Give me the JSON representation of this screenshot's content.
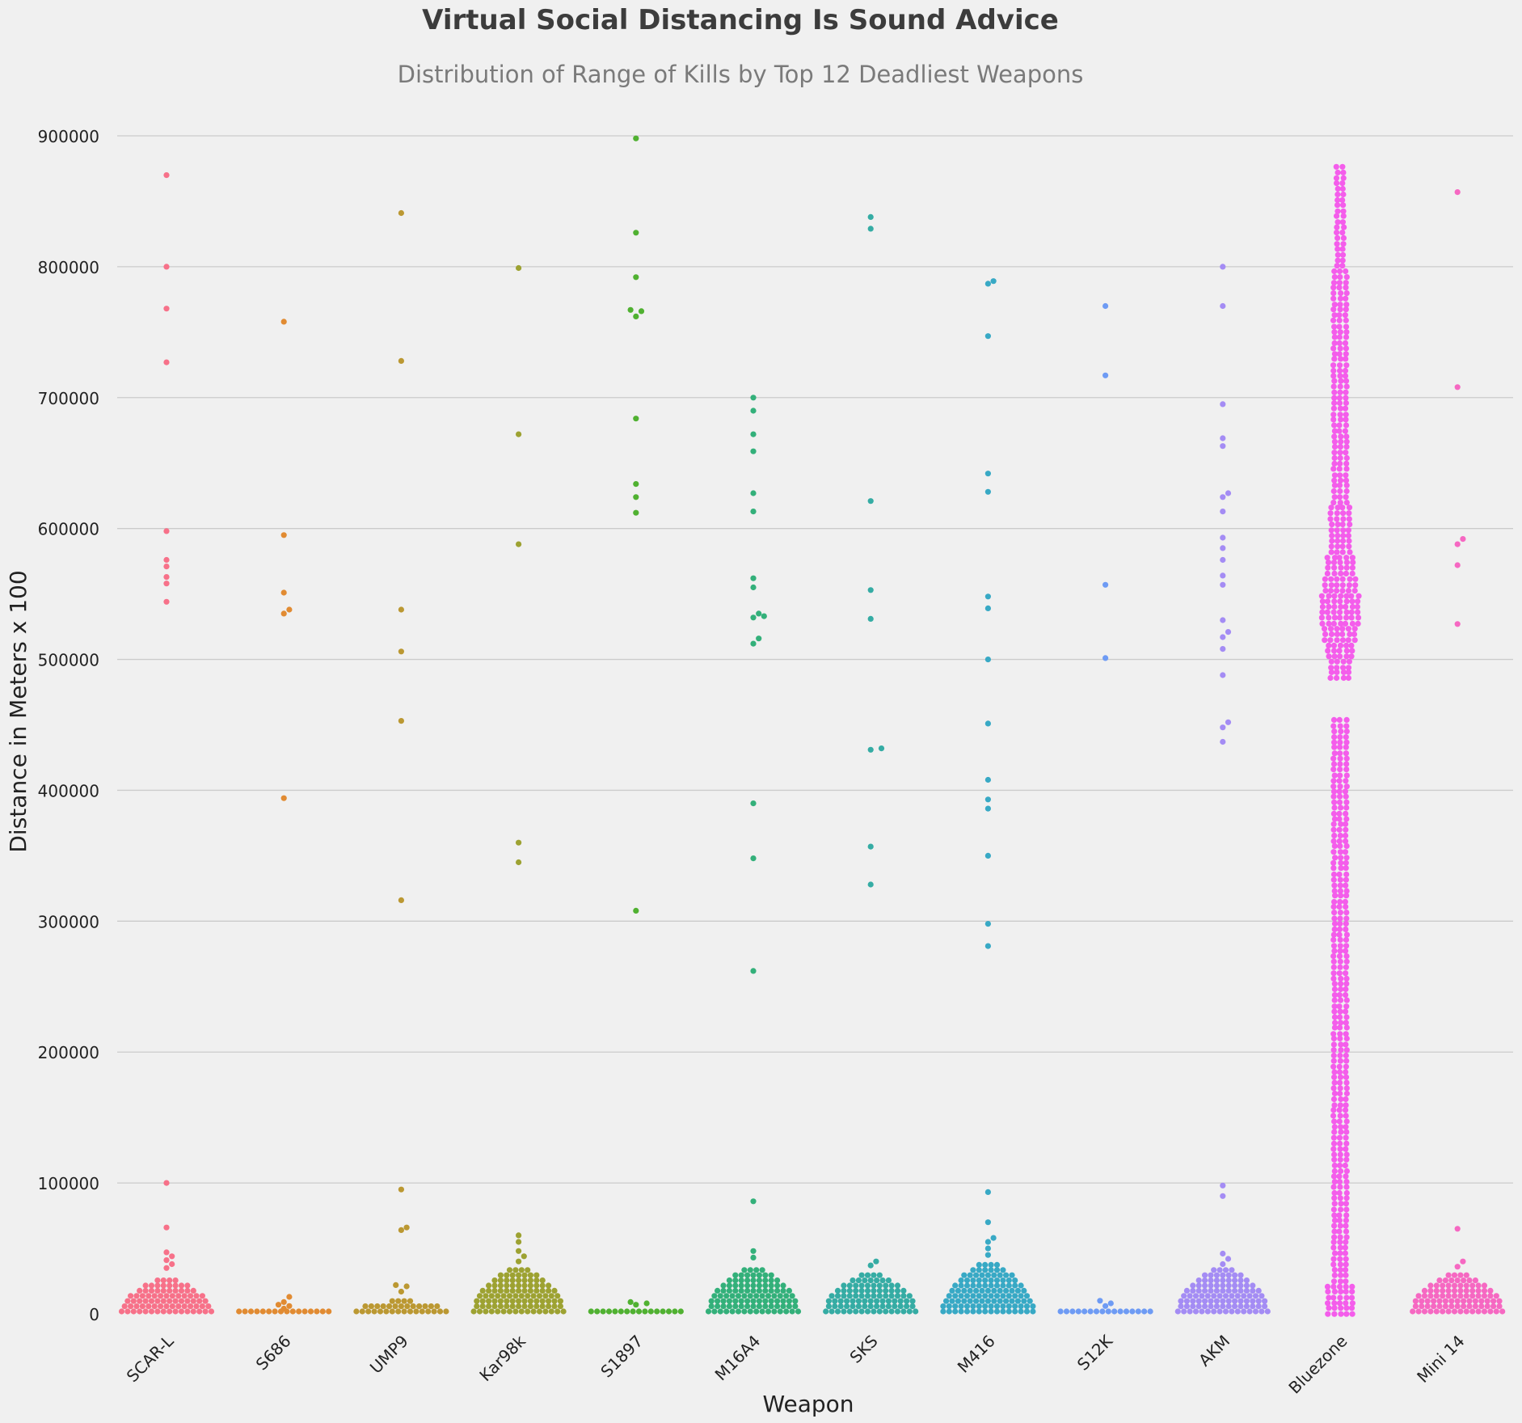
{
  "chart_data": {
    "type": "scatter",
    "subtype": "swarm",
    "title": "Virtual Social Distancing Is Sound Advice",
    "subtitle": "Distribution of Range of Kills by Top 12 Deadliest Weapons",
    "xlabel": "Weapon",
    "ylabel": "Distance in Meters x 100",
    "ylim": [
      0,
      915000
    ],
    "yticks": [
      0,
      100000,
      200000,
      300000,
      400000,
      500000,
      600000,
      700000,
      800000,
      900000
    ],
    "ytick_labels": [
      "0",
      "100000",
      "200000",
      "300000",
      "400000",
      "500000",
      "600000",
      "700000",
      "800000",
      "900000"
    ],
    "grid": "horizontal",
    "legend": "none",
    "categories": [
      "SCAR-L",
      "S686",
      "UMP9",
      "Kar98k",
      "S1897",
      "M16A4",
      "SKS",
      "M416",
      "S12K",
      "AKM",
      "Bluezone",
      "Mini 14"
    ],
    "colors": [
      "#f77189",
      "#e18b32",
      "#bb9832",
      "#9da232",
      "#50b131",
      "#33b07a",
      "#35aca4",
      "#38a9c5",
      "#6e9bf4",
      "#a48cf4",
      "#f45deb",
      "#f668c2"
    ],
    "series": [
      {
        "name": "SCAR-L",
        "outliers": [
          870000,
          800000,
          768000,
          727000,
          598000,
          576000,
          571000,
          563000,
          558000,
          544000,
          100000,
          66000,
          47000,
          44000,
          41000,
          38000,
          35000
        ],
        "dense_count": 210,
        "dense_max": 28000
      },
      {
        "name": "S686",
        "outliers": [
          758000,
          595000,
          551000,
          538000,
          535000,
          394000,
          13000,
          9000,
          7000,
          6000,
          4000
        ],
        "dense_count": 28,
        "dense_max": 3000
      },
      {
        "name": "UMP9",
        "outliers": [
          841000,
          728000,
          538000,
          506000,
          453000,
          316000,
          95000,
          66000,
          64000,
          22000,
          21000,
          17000
        ],
        "dense_count": 70,
        "dense_max": 11000
      },
      {
        "name": "Kar98k",
        "outliers": [
          799000,
          672000,
          588000,
          360000,
          345000,
          60000,
          55000,
          48000,
          44000,
          40000
        ],
        "dense_count": 190,
        "dense_max": 35000
      },
      {
        "name": "S1897",
        "outliers": [
          898000,
          826000,
          792000,
          767000,
          766000,
          762000,
          684000,
          634000,
          624000,
          612000,
          308000,
          9000,
          8000,
          7000
        ],
        "dense_count": 26,
        "dense_max": 3000
      },
      {
        "name": "M16A4",
        "outliers": [
          700000,
          690000,
          672000,
          659000,
          627000,
          613000,
          562000,
          555000,
          535000,
          533000,
          532000,
          516000,
          512000,
          390000,
          348000,
          262000,
          86000,
          48000,
          43000
        ],
        "dense_count": 200,
        "dense_max": 36000
      },
      {
        "name": "SKS",
        "outliers": [
          838000,
          829000,
          621000,
          553000,
          531000,
          432000,
          431000,
          357000,
          328000,
          40000,
          37000
        ],
        "dense_count": 150,
        "dense_max": 33000
      },
      {
        "name": "M416",
        "outliers": [
          789000,
          787000,
          747000,
          642000,
          628000,
          548000,
          539000,
          500000,
          451000,
          408000,
          393000,
          386000,
          350000,
          298000,
          281000,
          93000,
          70000,
          58000,
          55000,
          50000,
          45000
        ],
        "dense_count": 210,
        "dense_max": 40000
      },
      {
        "name": "S12K",
        "outliers": [
          770000,
          717000,
          557000,
          501000,
          10000,
          8000,
          6000
        ],
        "dense_count": 26,
        "dense_max": 3000
      },
      {
        "name": "AKM",
        "outliers": [
          800000,
          770000,
          695000,
          669000,
          663000,
          627000,
          624000,
          613000,
          593000,
          585000,
          576000,
          564000,
          557000,
          530000,
          521000,
          517000,
          508000,
          488000,
          452000,
          448000,
          437000,
          98000,
          90000,
          46000,
          42000,
          38000
        ],
        "dense_count": 130,
        "dense_max": 34000
      },
      {
        "name": "Bluezone",
        "distribution": "dense column spanning 0 to 880000, widest near 535000, narrow gap near 470000",
        "range": [
          0,
          880000
        ]
      },
      {
        "name": "Mini 14",
        "outliers": [
          857000,
          708000,
          592000,
          588000,
          572000,
          527000,
          65000,
          40000,
          36000
        ],
        "dense_count": 200,
        "dense_max": 32000
      }
    ]
  }
}
